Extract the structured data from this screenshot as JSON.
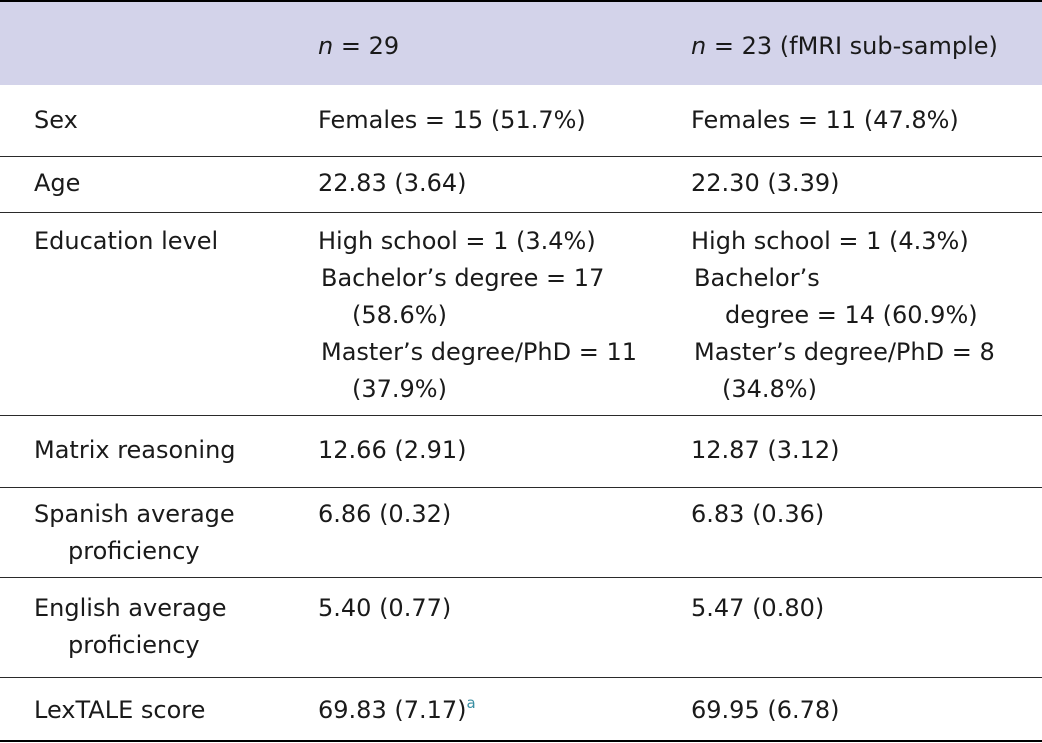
{
  "header": {
    "col1": "",
    "col2_n": "n",
    "col2_rest": " = 29",
    "col3_n": "n",
    "col3_rest": " = 23 (fMRI sub-sample)"
  },
  "rows": [
    {
      "label": [
        "Sex"
      ],
      "col2": [
        "Females = 15 (51.7%)"
      ],
      "col3": [
        "Females = 11 (47.8%)"
      ]
    },
    {
      "label": [
        "Age"
      ],
      "col2": [
        "22.83 (3.64)"
      ],
      "col3": [
        "22.30 (3.39)"
      ]
    },
    {
      "label": [
        "Education level"
      ],
      "col2": [
        "High school = 1 (3.4%)",
        "Bachelor’s degree = 17",
        "(58.6%)",
        "Master’s degree/PhD = 11",
        "(37.9%)"
      ],
      "col3": [
        "High school = 1 (4.3%)",
        "Bachelor’s",
        "degree = 14 (60.9%)",
        "Master’s degree/PhD = 8",
        "(34.8%)"
      ]
    },
    {
      "label": [
        "Matrix reasoning"
      ],
      "col2": [
        "12.66 (2.91)"
      ],
      "col3": [
        "12.87 (3.12)"
      ]
    },
    {
      "label": [
        "Spanish average",
        "proficiency"
      ],
      "col2": [
        "6.86 (0.32)"
      ],
      "col3": [
        "6.83 (0.36)"
      ]
    },
    {
      "label": [
        "English average",
        "proficiency"
      ],
      "col2": [
        "5.40 (0.77)"
      ],
      "col3": [
        "5.47 (0.80)"
      ]
    },
    {
      "label": [
        "LexTALE score"
      ],
      "col2": [
        "69.83 (7.17)"
      ],
      "col2_note": "a",
      "col3": [
        "69.95 (6.78)"
      ]
    }
  ]
}
